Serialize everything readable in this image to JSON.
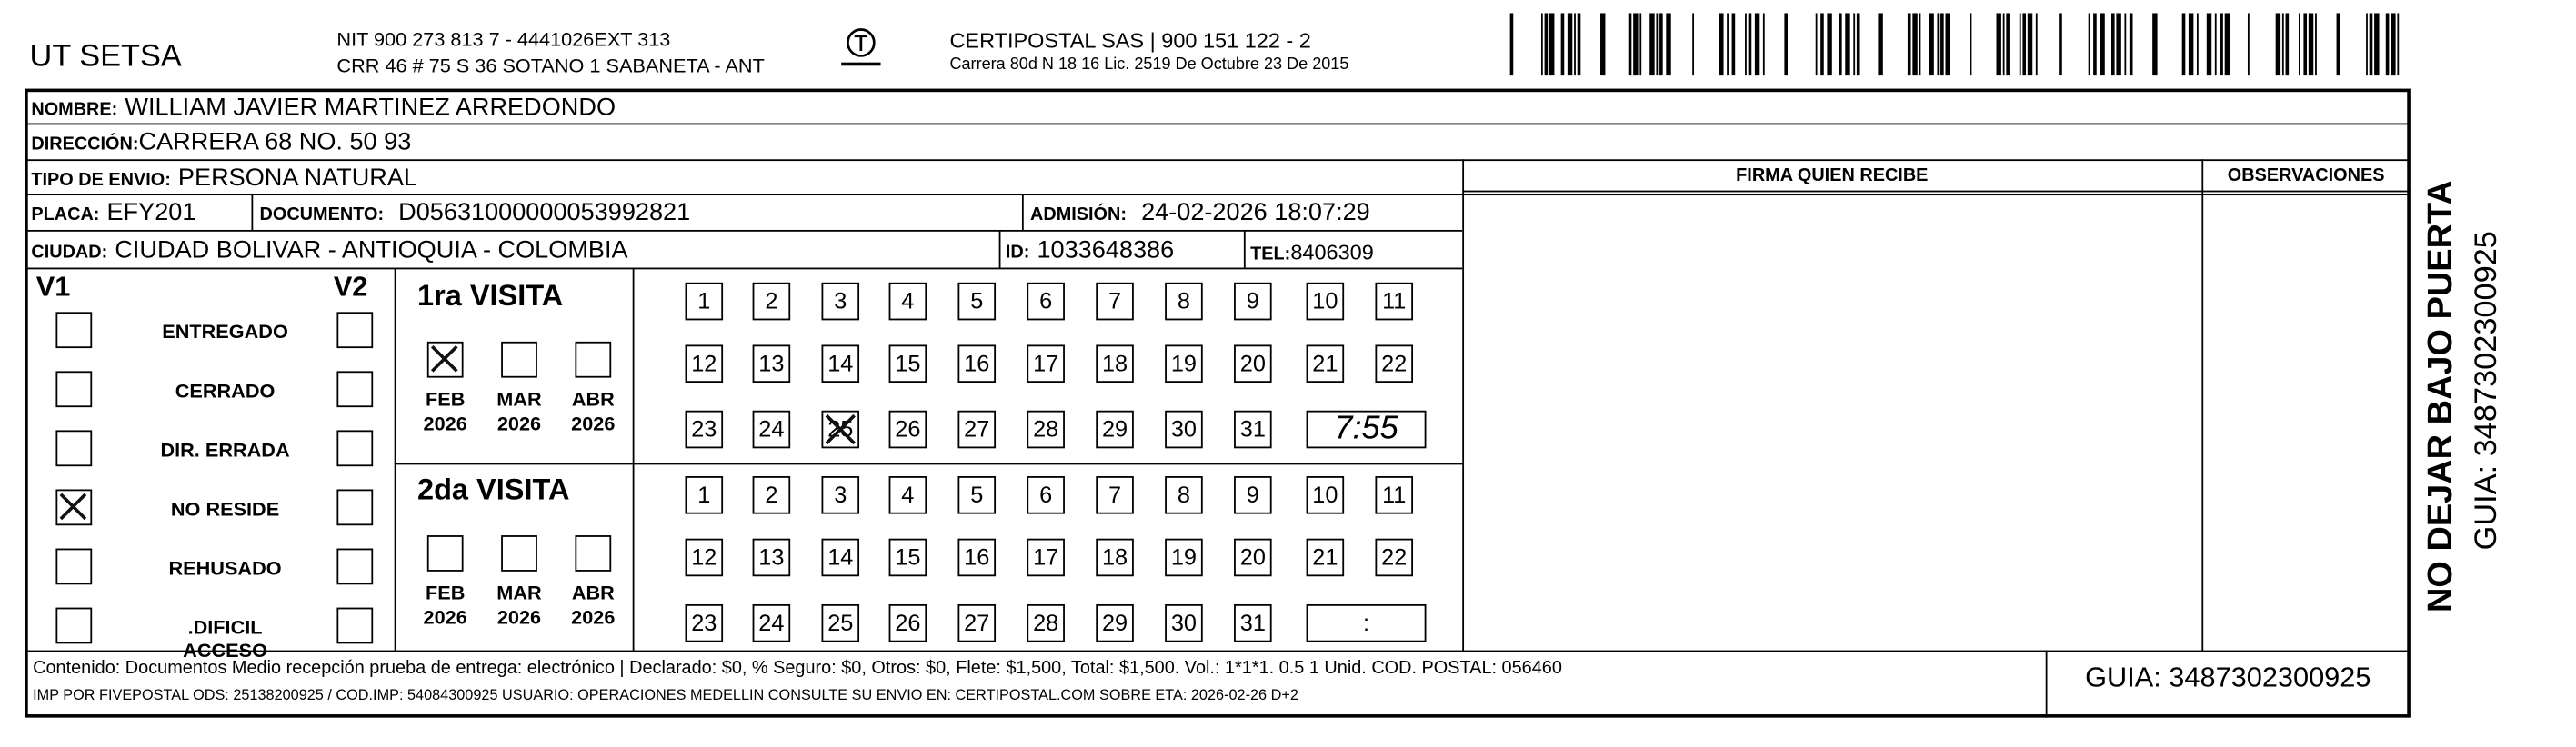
{
  "header": {
    "company": "UT SETSA",
    "nit": "NIT 900 273 813 7 - 4441026EXT 313",
    "address": "CRR 46 # 75 S 36 SOTANO 1 SABANETA - ANT",
    "carrier": "CERTIPOSTAL SAS | 900 151 122 - 2",
    "carrier_address": "Carrera 80d N 18 16  Lic. 2519 De Octubre 23 De 2015",
    "logo": "certipostal-logo",
    "barcode": "barcode"
  },
  "recipient": {
    "nombre_label": "NOMBRE:",
    "nombre": "WILLIAM JAVIER MARTINEZ ARREDONDO",
    "direccion_label": "DIRECCIÓN:",
    "direccion": "CARRERA 68 NO. 50 93",
    "tipo_label": "TIPO DE ENVIO:",
    "tipo": "PERSONA NATURAL",
    "placa_label": "PLACA:",
    "placa": "EFY201",
    "documento_label": "DOCUMENTO:",
    "documento": "D05631000000053992821",
    "admision_label": "ADMISIÓN:",
    "admision": "24-02-2026 18:07:29",
    "ciudad_label": "CIUDAD:",
    "ciudad": "CIUDAD BOLIVAR - ANTIOQUIA - COLOMBIA",
    "id_label": "ID:",
    "id": "1033648386",
    "tel_label": "TEL:",
    "tel": "8406309"
  },
  "firma_label": "FIRMA QUIEN RECIBE",
  "observaciones_label": "OBSERVACIONES",
  "status": {
    "v1": "V1",
    "v2": "V2",
    "items": [
      {
        "label": "ENTREGADO",
        "v1": false,
        "v2": false
      },
      {
        "label": "CERRADO",
        "v1": false,
        "v2": false
      },
      {
        "label": "DIR. ERRADA",
        "v1": false,
        "v2": false
      },
      {
        "label": "NO RESIDE",
        "v1": true,
        "v2": false
      },
      {
        "label": "REHUSADO",
        "v1": false,
        "v2": false
      },
      {
        "label": ".DIFICIL ACCESO",
        "v1": false,
        "v2": false
      }
    ]
  },
  "visits": [
    {
      "title": "1ra VISITA",
      "months": [
        {
          "m": "FEB",
          "y": "2026",
          "checked": true
        },
        {
          "m": "MAR",
          "y": "2026",
          "checked": false
        },
        {
          "m": "ABR",
          "y": "2026",
          "checked": false
        }
      ],
      "days": [
        "1",
        "2",
        "3",
        "4",
        "5",
        "6",
        "7",
        "8",
        "9",
        "10",
        "11",
        "12",
        "13",
        "14",
        "15",
        "16",
        "17",
        "18",
        "19",
        "20",
        "21",
        "22",
        "23",
        "24",
        "25",
        "26",
        "27",
        "28",
        "29",
        "30",
        "31"
      ],
      "checked_day": "25",
      "time": "7:55"
    },
    {
      "title": "2da VISITA",
      "months": [
        {
          "m": "FEB",
          "y": "2026",
          "checked": false
        },
        {
          "m": "MAR",
          "y": "2026",
          "checked": false
        },
        {
          "m": "ABR",
          "y": "2026",
          "checked": false
        }
      ],
      "days": [
        "1",
        "2",
        "3",
        "4",
        "5",
        "6",
        "7",
        "8",
        "9",
        "10",
        "11",
        "12",
        "13",
        "14",
        "15",
        "16",
        "17",
        "18",
        "19",
        "20",
        "21",
        "22",
        "23",
        "24",
        "25",
        "26",
        "27",
        "28",
        "29",
        "30",
        "31"
      ],
      "checked_day": null,
      "time": ":"
    }
  ],
  "footer": {
    "line1": "Contenido: Documentos Medio recepción prueba de entrega: electrónico | Declarado: $0, % Seguro: $0, Otros: $0, Flete: $1,500, Total: $1,500. Vol.: 1*1*1. 0.5  1 Unid. COD. POSTAL: 056460",
    "line2": "IMP POR FIVEPOSTAL ODS: 25138200925 / COD.IMP: 54084300925 USUARIO: OPERACIONES MEDELLIN CONSULTE SU ENVIO EN: CERTIPOSTAL.COM SOBRE ETA: 2026-02-26 D+2",
    "guia": "GUIA: 3487302300925"
  },
  "side": {
    "warning": "NO DEJAR BAJO PUERTA",
    "guia": "GUIA: 3487302300925"
  }
}
